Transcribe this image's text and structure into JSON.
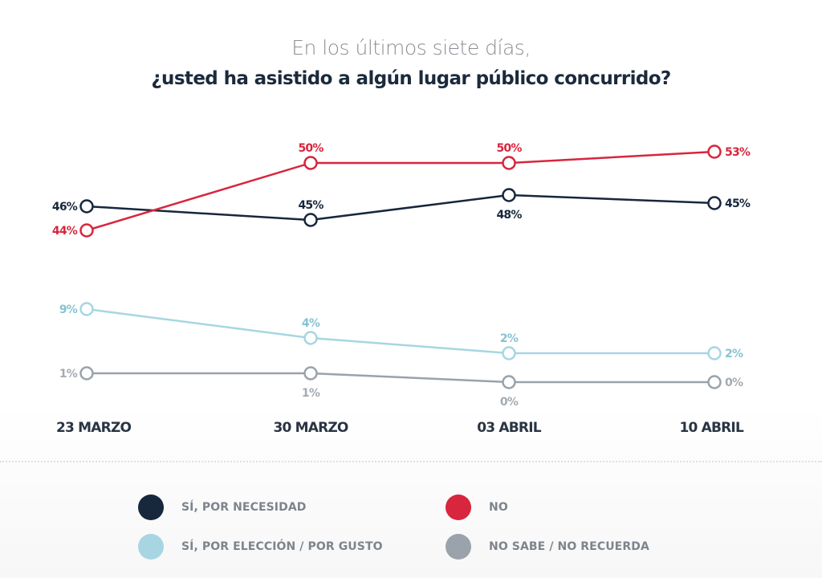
{
  "chart_data": {
    "type": "line",
    "title": "¿usted ha asistido a algún lugar público concurrido?",
    "subtitle": "En los últimos siete días,",
    "xlabel": "",
    "ylabel": "",
    "categories": [
      "23 MARZO",
      "30 MARZO",
      "03 ABRIL",
      "10 ABRIL"
    ],
    "ylim": [
      0,
      55
    ],
    "grid": false,
    "legend_position": "bottom",
    "series": [
      {
        "name": "SÍ, POR NECESIDAD",
        "key": "necesidad",
        "color": "#17273c",
        "values": [
          46,
          45,
          48,
          45
        ],
        "labels": [
          "46%",
          "45%",
          "48%",
          "45%"
        ]
      },
      {
        "name": "NO",
        "key": "no",
        "color": "#d7263d",
        "values": [
          44,
          50,
          50,
          53
        ],
        "labels": [
          "44%",
          "50%",
          "50%",
          "53%"
        ]
      },
      {
        "name": "SÍ, POR ELECCIÓN / POR GUSTO",
        "key": "eleccion",
        "color": "#a7d6e2",
        "label_color": "#85c3d2",
        "values": [
          9,
          4,
          2,
          2
        ],
        "labels": [
          "9%",
          "4%",
          "2%",
          "2%"
        ]
      },
      {
        "name": "NO SABE / NO RECUERDA",
        "key": "nosabe",
        "color": "#9aa2ab",
        "label_color": "#a3aab2",
        "values": [
          1,
          1,
          0,
          0
        ],
        "labels": [
          "1%",
          "1%",
          "0%",
          "0%"
        ]
      }
    ]
  },
  "header": {
    "subtitle": "En los últimos siete días,",
    "title": "¿usted ha asistido a algún lugar público concurrido?"
  },
  "legend": {
    "items": [
      {
        "label": "SÍ, POR NECESIDAD",
        "color": "#17273c"
      },
      {
        "label": "NO",
        "color": "#d7263d"
      },
      {
        "label": "SÍ, POR ELECCIÓN / POR GUSTO",
        "color": "#a7d6e2"
      },
      {
        "label": "NO SABE / NO RECUERDA",
        "color": "#9aa2ab"
      }
    ]
  }
}
